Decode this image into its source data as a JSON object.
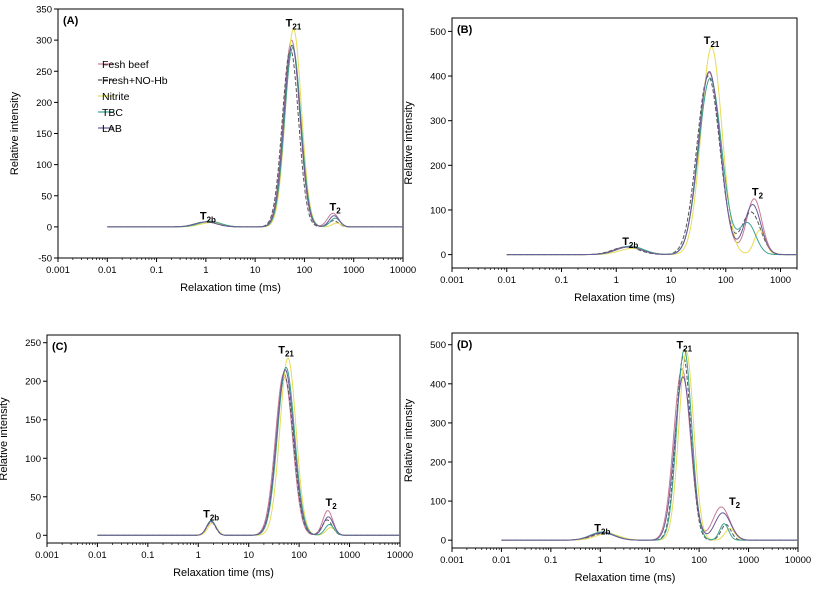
{
  "colors": {
    "fresh_beef": "#c77b95",
    "fresh_no_hb": "#555555",
    "nitrite": "#e6dc55",
    "tbc": "#38a38e",
    "lab": "#6a5a9a"
  },
  "chart_data": [
    {
      "panel": "(A)",
      "type": "line",
      "xscale": "log",
      "xlim": [
        0.001,
        10000
      ],
      "ylim": [
        -50,
        350
      ],
      "yticks": [
        -50,
        0,
        50,
        100,
        150,
        200,
        250,
        300,
        350
      ],
      "xticks": [
        0.001,
        0.01,
        0.1,
        1,
        10,
        100,
        1000,
        10000
      ],
      "xtick_labels": [
        "0.001",
        "0.01",
        "0.1",
        "1",
        "10",
        "100",
        "1000",
        "10000"
      ],
      "xlabel": "Relaxation time (ms)",
      "ylabel": "Relative intensity",
      "x_start": 0.01,
      "x_end": 10000,
      "peak_labels": [
        {
          "main": "T",
          "sub": "2b",
          "x": 1.1,
          "y": 12
        },
        {
          "main": "T",
          "sub": "21",
          "x": 60,
          "y": 322
        },
        {
          "main": "T",
          "sub": "2",
          "x": 420,
          "y": 26
        }
      ],
      "legend": {
        "position": "upper-left",
        "entries": [
          "Fesh beef",
          "Fresh+NO-Hb",
          "Nitrite",
          "TBC",
          "LAB"
        ]
      },
      "series": [
        {
          "name": "Fesh beef",
          "color_key": "fresh_beef",
          "dash": "",
          "peaks": [
            [
              1.1,
              8,
              0.22
            ],
            [
              55,
              300,
              0.165
            ],
            [
              380,
              22,
              0.11
            ]
          ]
        },
        {
          "name": "Fresh+NO-Hb",
          "color_key": "fresh_no_hb",
          "dash": "4,2",
          "peaks": [
            [
              1.0,
              8,
              0.22
            ],
            [
              52,
              285,
              0.165
            ],
            [
              390,
              10,
              0.1
            ]
          ]
        },
        {
          "name": "Nitrite",
          "color_key": "nitrite",
          "dash": "",
          "peaks": [
            [
              1.3,
              7,
              0.22
            ],
            [
              60,
              318,
              0.16
            ],
            [
              450,
              6,
              0.09
            ]
          ]
        },
        {
          "name": "TBC",
          "color_key": "tbc",
          "dash": "",
          "peaks": [
            [
              1.2,
              9,
              0.22
            ],
            [
              58,
              288,
              0.165
            ],
            [
              420,
              14,
              0.1
            ]
          ]
        },
        {
          "name": "LAB",
          "color_key": "lab",
          "dash": "",
          "peaks": [
            [
              1.0,
              8,
              0.22
            ],
            [
              56,
              292,
              0.165
            ],
            [
              400,
              18,
              0.1
            ]
          ]
        }
      ]
    },
    {
      "panel": "(B)",
      "type": "line",
      "xscale": "log",
      "xlim": [
        0.001,
        2000
      ],
      "ylim": [
        -30,
        530
      ],
      "yticks": [
        0,
        100,
        200,
        300,
        400,
        500
      ],
      "xticks": [
        0.001,
        0.01,
        0.1,
        1,
        10,
        100,
        1000
      ],
      "xtick_labels": [
        "0.001",
        "0.01",
        "0.1",
        "1",
        "10",
        "100",
        "1000"
      ],
      "xlabel": "Relaxation time (ms)",
      "ylabel": "Relative intensity",
      "x_start": 0.01,
      "x_end": 2000,
      "peak_labels": [
        {
          "main": "T",
          "sub": "2b",
          "x": 1.8,
          "y": 22
        },
        {
          "main": "T",
          "sub": "21",
          "x": 55,
          "y": 472
        },
        {
          "main": "T",
          "sub": "2",
          "x": 380,
          "y": 132
        }
      ],
      "series": [
        {
          "name": "Fesh beef",
          "color_key": "fresh_beef",
          "dash": "",
          "peaks": [
            [
              1.6,
              18,
              0.24
            ],
            [
              50,
              408,
              0.2
            ],
            [
              330,
              125,
              0.14
            ]
          ]
        },
        {
          "name": "Fresh+NO-Hb",
          "color_key": "fresh_no_hb",
          "dash": "4,2",
          "peaks": [
            [
              1.5,
              17,
              0.24
            ],
            [
              48,
              400,
              0.21
            ],
            [
              290,
              95,
              0.17
            ]
          ]
        },
        {
          "name": "Nitrite",
          "color_key": "nitrite",
          "dash": "",
          "peaks": [
            [
              2.0,
              14,
              0.24
            ],
            [
              55,
              465,
              0.19
            ],
            [
              420,
              55,
              0.1
            ]
          ]
        },
        {
          "name": "TBC",
          "color_key": "tbc",
          "dash": "",
          "peaks": [
            [
              1.8,
              19,
              0.24
            ],
            [
              52,
              395,
              0.21
            ],
            [
              250,
              70,
              0.15
            ]
          ]
        },
        {
          "name": "LAB",
          "color_key": "lab",
          "dash": "",
          "peaks": [
            [
              1.7,
              17,
              0.24
            ],
            [
              50,
              410,
              0.2
            ],
            [
              310,
              112,
              0.15
            ]
          ]
        }
      ]
    },
    {
      "panel": "(C)",
      "type": "line",
      "xscale": "log",
      "xlim": [
        0.001,
        10000
      ],
      "ylim": [
        -10,
        260
      ],
      "yticks": [
        0,
        50,
        100,
        150,
        200,
        250
      ],
      "xticks": [
        0.001,
        0.01,
        0.1,
        1,
        10,
        100,
        1000,
        10000
      ],
      "xtick_labels": [
        "0.001",
        "0.01",
        "0.1",
        "1",
        "10",
        "100",
        "1000",
        "10000"
      ],
      "xlabel": "Relaxation time (ms)",
      "ylabel": "Relative intensity",
      "x_start": 0.01,
      "x_end": 10000,
      "peak_labels": [
        {
          "main": "T",
          "sub": "2b",
          "x": 1.8,
          "y": 23
        },
        {
          "main": "T",
          "sub": "21",
          "x": 55,
          "y": 236
        },
        {
          "main": "T",
          "sub": "2",
          "x": 430,
          "y": 38
        }
      ],
      "series": [
        {
          "name": "Fesh beef",
          "color_key": "fresh_beef",
          "dash": "",
          "peaks": [
            [
              1.8,
              18,
              0.09
            ],
            [
              50,
              210,
              0.17
            ],
            [
              370,
              32,
              0.1
            ]
          ]
        },
        {
          "name": "Fresh+NO-Hb",
          "color_key": "fresh_no_hb",
          "dash": "4,2",
          "peaks": [
            [
              1.8,
              17,
              0.09
            ],
            [
              52,
              205,
              0.17
            ],
            [
              360,
              20,
              0.1
            ]
          ]
        },
        {
          "name": "Nitrite",
          "color_key": "nitrite",
          "dash": "",
          "peaks": [
            [
              1.9,
              16,
              0.09
            ],
            [
              60,
              230,
              0.16
            ],
            [
              420,
              10,
              0.09
            ]
          ]
        },
        {
          "name": "TBC",
          "color_key": "tbc",
          "dash": "",
          "peaks": [
            [
              1.8,
              19,
              0.09
            ],
            [
              55,
              218,
              0.17
            ],
            [
              400,
              14,
              0.09
            ]
          ]
        },
        {
          "name": "LAB",
          "color_key": "lab",
          "dash": "",
          "peaks": [
            [
              1.8,
              18,
              0.09
            ],
            [
              53,
              215,
              0.17
            ],
            [
              380,
              24,
              0.1
            ]
          ]
        }
      ]
    },
    {
      "panel": "(D)",
      "type": "line",
      "xscale": "log",
      "xlim": [
        0.001,
        10000
      ],
      "ylim": [
        -20,
        530
      ],
      "yticks": [
        0,
        100,
        200,
        300,
        400,
        500
      ],
      "xticks": [
        0.001,
        0.01,
        0.1,
        1,
        10,
        100,
        1000,
        10000
      ],
      "xtick_labels": [
        "0.001",
        "0.01",
        "0.1",
        "1",
        "10",
        "100",
        "1000",
        "10000"
      ],
      "xlabel": "Relaxation time (ms)",
      "ylabel": "Relative intensity",
      "x_start": 0.01,
      "x_end": 10000,
      "peak_labels": [
        {
          "main": "T",
          "sub": "2b",
          "x": 1.1,
          "y": 22
        },
        {
          "main": "T",
          "sub": "21",
          "x": 50,
          "y": 490
        },
        {
          "main": "T",
          "sub": "2",
          "x": 520,
          "y": 90
        }
      ],
      "series": [
        {
          "name": "Fesh beef",
          "color_key": "fresh_beef",
          "dash": "",
          "peaks": [
            [
              1.2,
              20,
              0.24
            ],
            [
              45,
              438,
              0.17
            ],
            [
              280,
              85,
              0.17
            ]
          ]
        },
        {
          "name": "Fresh+NO-Hb",
          "color_key": "fresh_no_hb",
          "dash": "4,2",
          "peaks": [
            [
              1.2,
              18,
              0.24
            ],
            [
              48,
              470,
              0.15
            ],
            [
              350,
              40,
              0.1
            ]
          ]
        },
        {
          "name": "Nitrite",
          "color_key": "nitrite",
          "dash": "",
          "peaks": [
            [
              1.4,
              17,
              0.24
            ],
            [
              55,
              482,
              0.15
            ],
            [
              420,
              30,
              0.1
            ]
          ]
        },
        {
          "name": "TBC",
          "color_key": "tbc",
          "dash": "",
          "peaks": [
            [
              1.1,
              21,
              0.24
            ],
            [
              50,
              488,
              0.15
            ],
            [
              320,
              42,
              0.09
            ]
          ]
        },
        {
          "name": "LAB",
          "color_key": "lab",
          "dash": "",
          "peaks": [
            [
              1.1,
              19,
              0.24
            ],
            [
              47,
              418,
              0.17
            ],
            [
              300,
              70,
              0.16
            ]
          ]
        }
      ]
    }
  ]
}
